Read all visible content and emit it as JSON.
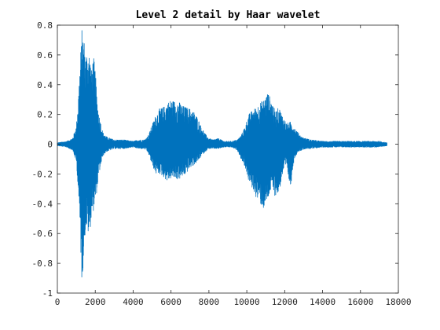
{
  "chart_data": {
    "type": "line",
    "title": "Level 2 detail by Haar wavelet",
    "xlabel": "",
    "ylabel": "",
    "xlim": [
      0,
      18000
    ],
    "ylim": [
      -1,
      0.8
    ],
    "xticks": [
      0,
      2000,
      4000,
      6000,
      8000,
      10000,
      12000,
      14000,
      16000,
      18000
    ],
    "xtick_labels": [
      "0",
      "2000",
      "4000",
      "6000",
      "8000",
      "10000",
      "12000",
      "14000",
      "16000",
      "18000"
    ],
    "yticks": [
      -1,
      -0.8,
      -0.6,
      -0.4,
      -0.2,
      0,
      0.2,
      0.4,
      0.6,
      0.8
    ],
    "ytick_labels": [
      "-1",
      "-0.8",
      "-0.6",
      "-0.4",
      "-0.2",
      "0",
      "0.2",
      "0.4",
      "0.6",
      "0.8"
    ],
    "grid": false,
    "colors": {
      "line": "#0072BD",
      "axes": "#262626",
      "background": "#ffffff"
    },
    "series": [
      {
        "name": "",
        "envelope": {
          "x": [
            0,
            500,
            800,
            1000,
            1100,
            1200,
            1300,
            1400,
            1500,
            1600,
            1700,
            1800,
            1900,
            2000,
            2100,
            2200,
            2400,
            2600,
            3000,
            3500,
            4000,
            4300,
            4600,
            4800,
            5000,
            5200,
            5400,
            5600,
            5800,
            6000,
            6200,
            6400,
            6600,
            6800,
            7000,
            7200,
            7400,
            7600,
            7800,
            8000,
            8200,
            8500,
            8800,
            9200,
            9500,
            9700,
            9900,
            10100,
            10300,
            10500,
            10700,
            10900,
            11100,
            11300,
            11500,
            11700,
            11900,
            12100,
            12300,
            12500,
            12700,
            12900,
            13100,
            13400,
            14000,
            15000,
            16000,
            17000,
            17400
          ],
          "upper": [
            0.01,
            0.02,
            0.04,
            0.12,
            0.3,
            0.55,
            0.78,
            0.72,
            0.6,
            0.65,
            0.62,
            0.5,
            0.6,
            0.5,
            0.3,
            0.2,
            0.08,
            0.05,
            0.03,
            0.03,
            0.02,
            0.03,
            0.03,
            0.06,
            0.13,
            0.2,
            0.24,
            0.25,
            0.28,
            0.3,
            0.29,
            0.29,
            0.26,
            0.25,
            0.24,
            0.22,
            0.18,
            0.12,
            0.07,
            0.04,
            0.03,
            0.04,
            0.02,
            0.02,
            0.03,
            0.06,
            0.12,
            0.2,
            0.23,
            0.25,
            0.28,
            0.3,
            0.35,
            0.3,
            0.22,
            0.25,
            0.19,
            0.14,
            0.15,
            0.12,
            0.08,
            0.05,
            0.04,
            0.03,
            0.02,
            0.02,
            0.02,
            0.02,
            0.01
          ],
          "lower": [
            -0.01,
            -0.02,
            -0.04,
            -0.12,
            -0.3,
            -0.6,
            -0.95,
            -0.72,
            -0.55,
            -0.6,
            -0.62,
            -0.48,
            -0.45,
            -0.4,
            -0.3,
            -0.2,
            -0.08,
            -0.05,
            -0.03,
            -0.03,
            -0.02,
            -0.03,
            -0.03,
            -0.06,
            -0.14,
            -0.2,
            -0.2,
            -0.22,
            -0.25,
            -0.23,
            -0.23,
            -0.24,
            -0.22,
            -0.2,
            -0.16,
            -0.14,
            -0.12,
            -0.08,
            -0.05,
            -0.03,
            -0.03,
            -0.03,
            -0.02,
            -0.02,
            -0.04,
            -0.1,
            -0.15,
            -0.25,
            -0.3,
            -0.36,
            -0.4,
            -0.44,
            -0.38,
            -0.3,
            -0.35,
            -0.33,
            -0.2,
            -0.15,
            -0.3,
            -0.1,
            -0.05,
            -0.04,
            -0.03,
            -0.03,
            -0.02,
            -0.02,
            -0.02,
            -0.02,
            -0.01
          ]
        }
      }
    ]
  }
}
